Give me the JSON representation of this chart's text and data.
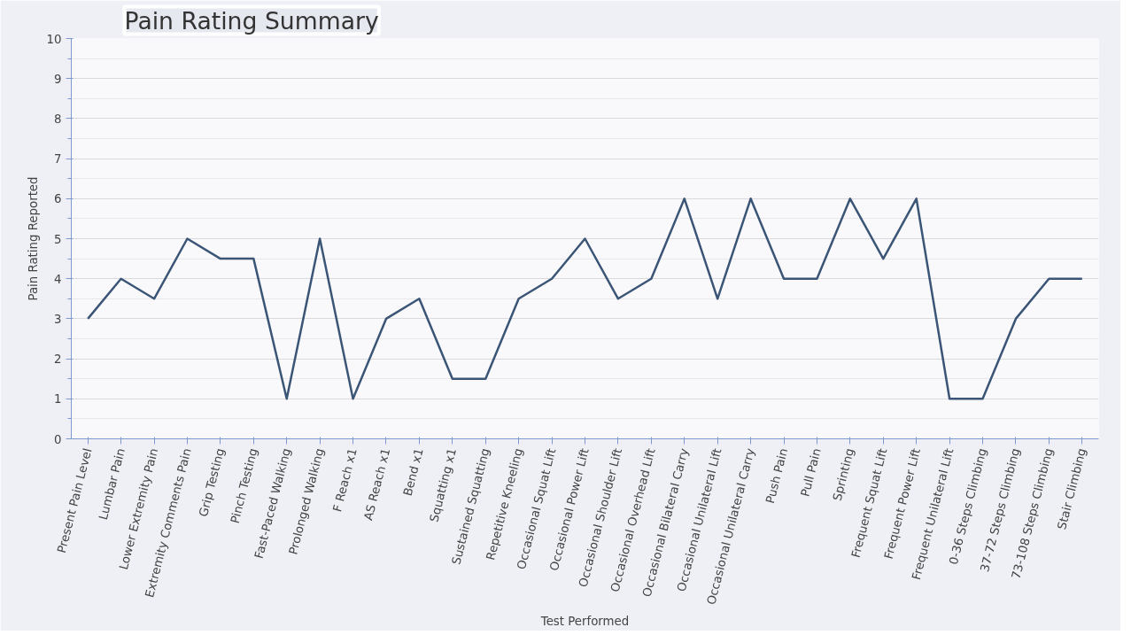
{
  "chart_data": {
    "type": "line",
    "title": "Pain Rating Summary",
    "xlabel": "Test Performed",
    "ylabel": "Pain Rating Reported",
    "categories": [
      "Present Pain Level",
      "Lumbar Pain",
      "Lower Extremity Pain",
      "Extremity Comments Pain",
      "Grip Testing",
      "Pinch Testing",
      "Fast-Paced Walking",
      "Prolonged Walking",
      "F Reach x1",
      "AS Reach x1",
      "Bend x1",
      "Squatting x1",
      "Sustained Squatting",
      "Repetitive Kneeling",
      "Occasional Squat Lift",
      "Occasional Power Lift",
      "Occasional Shoulder Lift",
      "Occasional Overhead Lift",
      "Occasional Bilateral Carry",
      "Occasional Unilateral Lift",
      "Occasional Unilateral Carry",
      "Push Pain",
      "Pull Pain",
      "Sprinting",
      "Frequent Squat Lift",
      "Frequent Power Lift",
      "Frequent Unilateral Lift",
      "0-36 Steps Climbing",
      "37-72 Steps Climbing",
      "73-108 Steps Climbing",
      "Stair Climbing"
    ],
    "series": [
      {
        "color": "#3b5576",
        "values": [
          3,
          4,
          3.5,
          5,
          4.5,
          4.5,
          1,
          5,
          1,
          3,
          3.5,
          1.5,
          1.5,
          3.5,
          4,
          5,
          3.5,
          4,
          6,
          3.5,
          6,
          4,
          4,
          6,
          4.5,
          6,
          1,
          1,
          3,
          4,
          4
        ]
      }
    ],
    "ylim": [
      0,
      10
    ],
    "yticks": [
      0,
      1,
      2,
      3,
      4,
      5,
      6,
      7,
      8,
      9,
      10
    ],
    "grid": "y",
    "marker": "none",
    "line_style": "solid"
  }
}
